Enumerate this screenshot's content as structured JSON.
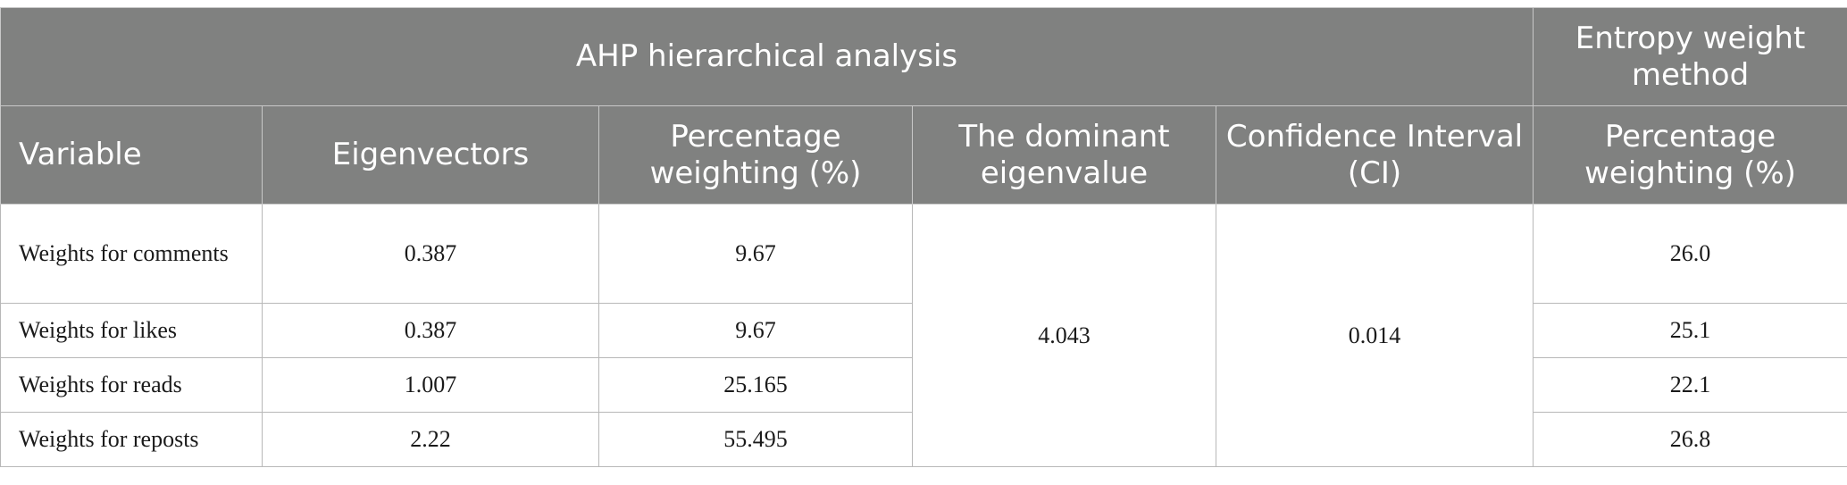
{
  "header": {
    "ahp_group": "AHP hierarchical analysis",
    "entropy_group": "Entropy weight method",
    "columns": [
      "Variable",
      "Eigenvectors",
      "Percentage weighting (%)",
      "The dominant eigenvalue",
      "Confidence Interval (CI)",
      "Percentage weighting (%)"
    ]
  },
  "rows": [
    {
      "variable": "Weights for comments",
      "eigenvector": "0.387",
      "ahp_weight": "9.67",
      "entropy_weight": "26.0"
    },
    {
      "variable": "Weights for likes",
      "eigenvector": "0.387",
      "ahp_weight": "9.67",
      "entropy_weight": "25.1"
    },
    {
      "variable": "Weights for reads",
      "eigenvector": "1.007",
      "ahp_weight": "25.165",
      "entropy_weight": "22.1"
    },
    {
      "variable": "Weights for reposts",
      "eigenvector": "2.22",
      "ahp_weight": "55.495",
      "entropy_weight": "26.8"
    }
  ],
  "merged": {
    "dominant_eigenvalue": "4.043",
    "confidence_interval": "0.014"
  }
}
